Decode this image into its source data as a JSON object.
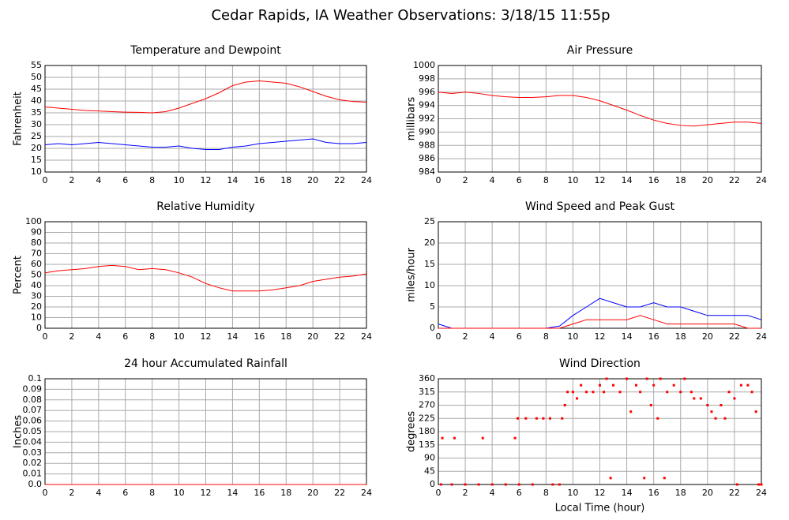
{
  "title": "Cedar Rapids, IA Weather Observations: 3/18/15 11:55p",
  "chart_data": [
    {
      "type": "line",
      "title": "Temperature and Dewpoint",
      "ylabel": "Fahrenheit",
      "grid": true,
      "xlim": [
        0,
        24
      ],
      "xticks": [
        0,
        2,
        4,
        6,
        8,
        10,
        12,
        14,
        16,
        18,
        20,
        22,
        24
      ],
      "ylim": [
        10,
        55
      ],
      "yticks": [
        10,
        15,
        20,
        25,
        30,
        35,
        40,
        45,
        50,
        55
      ],
      "x": [
        0,
        1,
        2,
        3,
        4,
        5,
        6,
        7,
        8,
        9,
        10,
        11,
        12,
        13,
        14,
        15,
        16,
        17,
        18,
        19,
        20,
        21,
        22,
        23,
        24
      ],
      "series": [
        {
          "color": "#ff0000",
          "values": [
            37.5,
            37,
            36.5,
            36,
            35.8,
            35.5,
            35.3,
            35.2,
            35,
            35.5,
            37,
            39,
            41,
            43.5,
            46.5,
            48,
            48.5,
            48,
            47.5,
            46,
            44,
            42,
            40.5,
            39.8,
            39.5
          ]
        },
        {
          "color": "#0000ff",
          "values": [
            21.5,
            22,
            21.5,
            22,
            22.5,
            22,
            21.5,
            21,
            20.5,
            20.5,
            21,
            20,
            19.5,
            19.5,
            20.5,
            21,
            22,
            22.5,
            23,
            23.5,
            24,
            22.5,
            22,
            22,
            22.5
          ]
        }
      ]
    },
    {
      "type": "line",
      "title": "Air Pressure",
      "ylabel": "millibars",
      "grid": true,
      "xlim": [
        0,
        24
      ],
      "xticks": [
        0,
        2,
        4,
        6,
        8,
        10,
        12,
        14,
        16,
        18,
        20,
        22,
        24
      ],
      "ylim": [
        984,
        1000
      ],
      "yticks": [
        984,
        986,
        988,
        990,
        992,
        994,
        996,
        998,
        1000
      ],
      "x": [
        0,
        1,
        2,
        3,
        4,
        5,
        6,
        7,
        8,
        9,
        10,
        11,
        12,
        13,
        14,
        15,
        16,
        17,
        18,
        19,
        20,
        21,
        22,
        23,
        24
      ],
      "series": [
        {
          "color": "#ff0000",
          "values": [
            996,
            995.8,
            996,
            995.8,
            995.5,
            995.3,
            995.2,
            995.2,
            995.3,
            995.5,
            995.5,
            995.2,
            994.7,
            994,
            993.3,
            992.5,
            991.8,
            991.3,
            991,
            990.9,
            991.1,
            991.3,
            991.5,
            991.5,
            991.3
          ]
        }
      ]
    },
    {
      "type": "line",
      "title": "Relative Humidity",
      "ylabel": "Percent",
      "grid": true,
      "xlim": [
        0,
        24
      ],
      "xticks": [
        0,
        2,
        4,
        6,
        8,
        10,
        12,
        14,
        16,
        18,
        20,
        22,
        24
      ],
      "ylim": [
        0,
        100
      ],
      "yticks": [
        0,
        10,
        20,
        30,
        40,
        50,
        60,
        70,
        80,
        90,
        100
      ],
      "x": [
        0,
        1,
        2,
        3,
        4,
        5,
        6,
        7,
        8,
        9,
        10,
        11,
        12,
        13,
        14,
        15,
        16,
        17,
        18,
        19,
        20,
        21,
        22,
        23,
        24
      ],
      "series": [
        {
          "color": "#ff0000",
          "values": [
            52,
            54,
            55,
            56,
            58,
            59,
            58,
            55,
            56,
            55,
            52,
            48,
            42,
            38,
            35,
            35,
            35,
            36,
            38,
            40,
            44,
            46,
            48,
            49,
            51
          ]
        }
      ]
    },
    {
      "type": "line",
      "title": "Wind Speed and Peak Gust",
      "ylabel": "miles/hour",
      "grid": true,
      "xlim": [
        0,
        24
      ],
      "xticks": [
        0,
        2,
        4,
        6,
        8,
        10,
        12,
        14,
        16,
        18,
        20,
        22,
        24
      ],
      "ylim": [
        0,
        25
      ],
      "yticks": [
        0,
        5,
        10,
        15,
        20,
        25
      ],
      "x": [
        0,
        1,
        2,
        3,
        4,
        5,
        6,
        7,
        8,
        9,
        10,
        11,
        12,
        13,
        14,
        15,
        16,
        17,
        18,
        19,
        20,
        21,
        22,
        23,
        24
      ],
      "series": [
        {
          "color": "#0000ff",
          "values": [
            1,
            0,
            0,
            0,
            0,
            0,
            0,
            0,
            0,
            0.5,
            3,
            5,
            7,
            6,
            5,
            5,
            6,
            5,
            5,
            4,
            3,
            3,
            3,
            3,
            2
          ]
        },
        {
          "color": "#ff0000",
          "values": [
            0,
            0,
            0,
            0,
            0,
            0,
            0,
            0,
            0,
            0,
            1,
            2,
            2,
            2,
            2,
            3,
            2,
            1,
            1,
            1,
            1,
            1,
            1,
            0,
            0
          ]
        }
      ]
    },
    {
      "type": "line",
      "title": "24 hour Accumulated Rainfall",
      "ylabel": "Inches",
      "grid": true,
      "xlim": [
        0,
        24
      ],
      "xticks": [
        0,
        2,
        4,
        6,
        8,
        10,
        12,
        14,
        16,
        18,
        20,
        22,
        24
      ],
      "ylim": [
        0,
        0.1
      ],
      "yticks": [
        {
          "value": 0,
          "label": "0.0"
        },
        0.01,
        0.02,
        0.03,
        0.04,
        0.05,
        0.06,
        0.07,
        0.08,
        0.09,
        0.1
      ],
      "x": [
        0,
        24
      ],
      "series": [
        {
          "color": "#ff0000",
          "values": [
            0,
            0
          ]
        }
      ]
    },
    {
      "type": "scatter",
      "title": "Wind Direction",
      "ylabel": "degrees",
      "xlabel": "Local Time (hour)",
      "grid": true,
      "color": "#ff0000",
      "xlim": [
        0,
        24
      ],
      "xticks": [
        0,
        2,
        4,
        6,
        8,
        10,
        12,
        14,
        16,
        18,
        20,
        22,
        24
      ],
      "ylim": [
        0,
        360
      ],
      "yticks": [
        0,
        45,
        90,
        135,
        180,
        225,
        270,
        315,
        360
      ],
      "x": [
        0.2,
        0.3,
        1,
        1.2,
        2,
        3,
        3.3,
        4,
        5,
        5.7,
        5.9,
        6,
        6.5,
        7,
        7.3,
        7.8,
        8.3,
        8.5,
        9,
        9.2,
        9.4,
        9.6,
        10,
        10.3,
        10.6,
        11,
        11.5,
        12,
        12.3,
        12.5,
        12.8,
        13,
        13.5,
        14,
        14.3,
        14.7,
        15,
        15.3,
        15.5,
        15.8,
        16,
        16.3,
        16.5,
        16.8,
        17,
        17.5,
        18,
        18.3,
        18.8,
        19,
        19.5,
        20,
        20.3,
        20.6,
        21,
        21.3,
        21.6,
        22,
        22.2,
        22.5,
        23,
        23.3,
        23.6,
        23.8,
        24
      ],
      "values": [
        0,
        158,
        0,
        158,
        0,
        0,
        158,
        0,
        0,
        158,
        225,
        0,
        225,
        0,
        225,
        225,
        225,
        0,
        0,
        225,
        270,
        315,
        315,
        293,
        338,
        315,
        315,
        338,
        315,
        360,
        22,
        338,
        315,
        360,
        248,
        338,
        315,
        22,
        360,
        270,
        338,
        225,
        360,
        22,
        315,
        338,
        315,
        360,
        315,
        293,
        293,
        270,
        248,
        225,
        270,
        225,
        315,
        293,
        0,
        338,
        338,
        315,
        248,
        0,
        0
      ]
    }
  ]
}
